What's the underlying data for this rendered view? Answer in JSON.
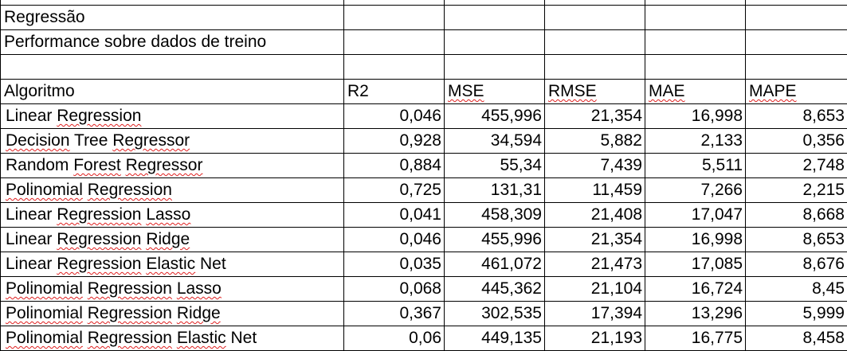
{
  "title": "Regressão",
  "subtitle": "Performance sobre dados de treino",
  "columns": [
    "Algoritmo",
    "R2",
    "MSE",
    "RMSE",
    "MAE",
    "MAPE"
  ],
  "rows": [
    {
      "algoritmo": "Linear Regression",
      "r2": "0,046",
      "mse": "455,996",
      "rmse": "21,354",
      "mae": "16,998",
      "mape": "8,653"
    },
    {
      "algoritmo": "Decision Tree Regressor",
      "r2": "0,928",
      "mse": "34,594",
      "rmse": "5,882",
      "mae": "2,133",
      "mape": "0,356"
    },
    {
      "algoritmo": "Random Forest Regressor",
      "r2": "0,884",
      "mse": "55,34",
      "rmse": "7,439",
      "mae": "5,511",
      "mape": "2,748"
    },
    {
      "algoritmo": "Polinomial Regression",
      "r2": "0,725",
      "mse": "131,31",
      "rmse": "11,459",
      "mae": "7,266",
      "mape": "2,215"
    },
    {
      "algoritmo": "Linear Regression Lasso",
      "r2": "0,041",
      "mse": "458,309",
      "rmse": "21,408",
      "mae": "17,047",
      "mape": "8,668"
    },
    {
      "algoritmo": "Linear Regression Ridge",
      "r2": "0,046",
      "mse": "455,996",
      "rmse": "21,354",
      "mae": "16,998",
      "mape": "8,653"
    },
    {
      "algoritmo": "Linear Regression Elastic Net",
      "r2": "0,035",
      "mse": "461,072",
      "rmse": "21,473",
      "mae": "17,085",
      "mape": "8,676"
    },
    {
      "algoritmo": "Polinomial Regression Lasso",
      "r2": "0,068",
      "mse": "445,362",
      "rmse": "21,104",
      "mae": "16,724",
      "mape": "8,45"
    },
    {
      "algoritmo": "Polinomial Regression Ridge",
      "r2": "0,367",
      "mse": "302,535",
      "rmse": "17,394",
      "mae": "13,296",
      "mape": "5,999"
    },
    {
      "algoritmo": "Polinomial Regression Elastic Net",
      "r2": "0,06",
      "mse": "449,135",
      "rmse": "21,193",
      "mae": "16,775",
      "mape": "8,458"
    }
  ]
}
